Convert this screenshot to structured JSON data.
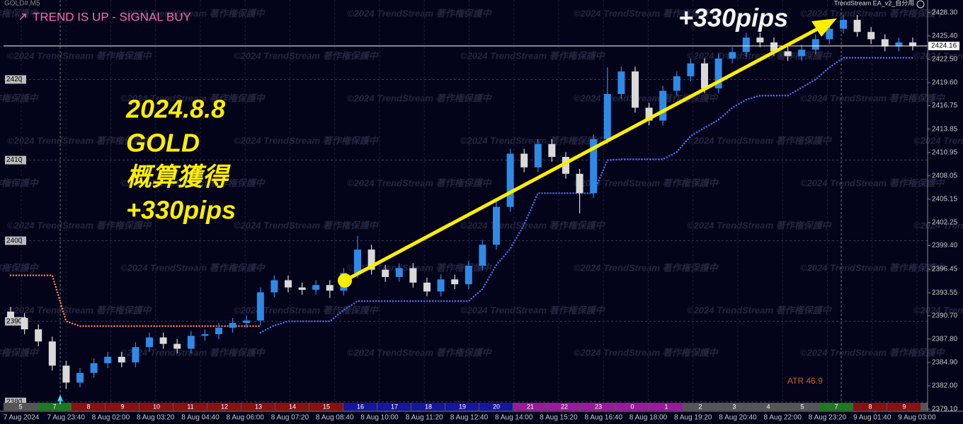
{
  "chart_data": {
    "type": "candlestick",
    "symbol": "GOLD#,M5",
    "title": "TREND IS UP - SIGNAL BUY",
    "indicator_name": "TrendStream EA_v2_自分用",
    "watermark": "©2024 TrendStream 著作権保護中",
    "annotations": [
      "2024.8.8",
      "GOLD",
      "概算獲得",
      "+330pips"
    ],
    "headline": "+330pips",
    "atr_label": "ATR 46.9",
    "bull_color": "#2f8ae6",
    "bear_color": "#d9d9d9",
    "ylim": [
      2379.1,
      2429.6
    ],
    "yticks": [
      {
        "value": 2428.3,
        "label": "2428.30"
      },
      {
        "value": 2425.4,
        "label": "2425.40"
      },
      {
        "value": 2422.5,
        "label": "2422.50"
      },
      {
        "value": 2419.6,
        "label": "2419.60"
      },
      2416.75,
      {
        "value": 2413.85,
        "label": "2413.85"
      },
      {
        "value": 2410.95,
        "label": "2410.95"
      },
      {
        "value": 2408.05,
        "label": "2408.05"
      },
      {
        "value": 2405.15,
        "label": "2405.15"
      },
      {
        "value": 2402.25,
        "label": "2402.25"
      },
      {
        "value": 2399.4,
        "label": "2399.40"
      },
      {
        "value": 2396.45,
        "label": "2396.45"
      },
      {
        "value": 2393.55,
        "label": "2393.55"
      },
      {
        "value": 2390.7,
        "label": "2390.70"
      },
      {
        "value": 2387.8,
        "label": "2387.80"
      },
      {
        "value": 2384.9,
        "label": "2384.90"
      },
      {
        "value": 2382.0,
        "label": "2382.00"
      },
      {
        "value": 2379.1,
        "label": "2379.10"
      }
    ],
    "left_ticks": [
      2420,
      2410,
      2400,
      2390,
      2380
    ],
    "last_price": 2424.16,
    "time_labels": [
      "7 Aug 2024",
      "7 Aug 23:40",
      "8 Aug 02:00",
      "8 Aug 03:20",
      "8 Aug 04:40",
      "8 Aug 06:00",
      "8 Aug 07:20",
      "8 Aug 08:40",
      "8 Aug 10:00",
      "8 Aug 11:20",
      "8 Aug 12:40",
      "8 Aug 14:00",
      "8 Aug 15:20",
      "8 Aug 16:40",
      "8 Aug 18:00",
      "8 Aug 19:20",
      "8 Aug 20:40",
      "8 Aug 22:00",
      "8 Aug 23:20",
      "9 Aug 01:40",
      "9 Aug 03:00"
    ],
    "sessions": [
      {
        "label": "5",
        "color": "#555555"
      },
      {
        "label": "7",
        "color": "#1e7a1e"
      },
      {
        "label": "8",
        "color": "#8b1010"
      },
      {
        "label": "9",
        "color": "#8b1010"
      },
      {
        "label": "10",
        "color": "#8b1010"
      },
      {
        "label": "11",
        "color": "#8b1010"
      },
      {
        "label": "12",
        "color": "#8b1010"
      },
      {
        "label": "13",
        "color": "#8b1010"
      },
      {
        "label": "14",
        "color": "#8b1010"
      },
      {
        "label": "15",
        "color": "#8b1010"
      },
      {
        "label": "16",
        "color": "#1616a0"
      },
      {
        "label": "17",
        "color": "#1616a0"
      },
      {
        "label": "18",
        "color": "#1616a0"
      },
      {
        "label": "19",
        "color": "#1616a0"
      },
      {
        "label": "20",
        "color": "#1616a0"
      },
      {
        "label": "21",
        "color": "#9a1a9a"
      },
      {
        "label": "22",
        "color": "#9a1a9a"
      },
      {
        "label": "23",
        "color": "#9a1a9a"
      },
      {
        "label": "0",
        "color": "#9a1a9a"
      },
      {
        "label": "1",
        "color": "#9a1a9a"
      },
      {
        "label": "2",
        "color": "#555555"
      },
      {
        "label": "3",
        "color": "#555555"
      },
      {
        "label": "4",
        "color": "#555555"
      },
      {
        "label": "5",
        "color": "#555555"
      },
      {
        "label": "7",
        "color": "#1e7a1e"
      },
      {
        "label": "8",
        "color": "#8b1010"
      },
      {
        "label": "9",
        "color": "#8b1010"
      }
    ],
    "open": [
      2391.2,
      2390.4,
      2389.0,
      2387.5,
      2384.5,
      2382.4,
      2383.6,
      2384.8,
      2385.6,
      2384.9,
      2386.8,
      2388.0,
      2387.2,
      2386.6,
      2388.2,
      2388.4,
      2389.2,
      2389.8,
      2390.1,
      2393.6,
      2395.1,
      2394.2,
      2393.9,
      2394.5,
      2393.8,
      2396.0,
      2398.9,
      2396.4,
      2395.5,
      2396.6,
      2394.8,
      2393.7,
      2395.2,
      2394.6,
      2396.9,
      2399.5,
      2404.2,
      2410.8,
      2409.1,
      2412.0,
      2410.4,
      2408.3,
      2405.9,
      2412.6,
      2418.2,
      2421.0,
      2416.5,
      2414.9,
      2418.6,
      2420.4,
      2422.0,
      2418.9,
      2422.6,
      2423.4,
      2425.2,
      2424.6,
      2423.5,
      2422.9,
      2423.7,
      2425.0,
      2426.3,
      2427.4,
      2425.9,
      2425.0,
      2424.1,
      2424.6
    ],
    "high": [
      2391.8,
      2391.0,
      2389.6,
      2388.1,
      2385.1,
      2384.2,
      2385.4,
      2386.2,
      2386.2,
      2387.4,
      2388.6,
      2388.6,
      2387.8,
      2388.8,
      2389.0,
      2389.8,
      2390.4,
      2390.7,
      2394.2,
      2395.7,
      2395.7,
      2394.8,
      2395.1,
      2395.1,
      2396.6,
      2400.6,
      2399.5,
      2397.0,
      2397.2,
      2397.2,
      2395.4,
      2395.8,
      2395.8,
      2397.5,
      2400.1,
      2404.8,
      2411.4,
      2411.4,
      2412.6,
      2412.6,
      2411.0,
      2408.9,
      2413.2,
      2421.5,
      2421.6,
      2421.6,
      2417.1,
      2419.2,
      2421.0,
      2422.6,
      2422.6,
      2423.2,
      2424.0,
      2425.8,
      2425.8,
      2425.2,
      2424.1,
      2424.3,
      2425.6,
      2426.9,
      2428.0,
      2428.0,
      2426.5,
      2425.6,
      2425.2,
      2425.2
    ],
    "low": [
      2389.8,
      2388.4,
      2386.9,
      2383.9,
      2381.6,
      2381.8,
      2383.0,
      2384.2,
      2384.3,
      2384.3,
      2386.2,
      2386.6,
      2386.0,
      2386.0,
      2387.6,
      2387.8,
      2388.6,
      2389.2,
      2389.5,
      2393.0,
      2393.6,
      2393.3,
      2393.3,
      2392.9,
      2393.2,
      2395.4,
      2395.8,
      2394.9,
      2394.9,
      2394.2,
      2393.1,
      2393.1,
      2394.0,
      2394.0,
      2396.3,
      2398.9,
      2403.6,
      2408.5,
      2408.5,
      2409.8,
      2407.7,
      2403.4,
      2405.3,
      2412.0,
      2417.6,
      2415.9,
      2414.3,
      2414.3,
      2418.0,
      2419.8,
      2418.3,
      2418.3,
      2422.0,
      2422.8,
      2424.0,
      2422.9,
      2422.3,
      2422.3,
      2423.1,
      2424.4,
      2425.7,
      2425.3,
      2424.4,
      2423.5,
      2423.5,
      2423.6
    ],
    "close": [
      2390.4,
      2389.0,
      2387.5,
      2384.5,
      2382.4,
      2383.6,
      2384.8,
      2385.6,
      2384.9,
      2386.8,
      2388.0,
      2387.2,
      2386.6,
      2388.2,
      2388.4,
      2389.2,
      2389.8,
      2390.1,
      2393.6,
      2395.1,
      2394.2,
      2393.9,
      2394.5,
      2393.8,
      2396.0,
      2398.9,
      2396.4,
      2395.5,
      2396.6,
      2394.8,
      2393.7,
      2395.2,
      2394.6,
      2396.9,
      2399.5,
      2404.2,
      2410.8,
      2409.1,
      2412.0,
      2410.4,
      2408.3,
      2405.9,
      2412.6,
      2418.2,
      2421.0,
      2416.5,
      2414.9,
      2418.6,
      2420.4,
      2422.0,
      2418.9,
      2422.6,
      2423.4,
      2425.2,
      2424.6,
      2423.5,
      2422.9,
      2423.7,
      2425.0,
      2426.3,
      2427.4,
      2425.9,
      2425.0,
      2424.1,
      2424.6,
      2424.2
    ],
    "series": [
      {
        "color": "#ff7f50",
        "values": [
          2395.7,
          2395.7,
          2395.7,
          2395.7,
          2390.0,
          2389.4,
          2389.4,
          2389.4,
          2389.4,
          2389.4,
          2389.4,
          2389.4,
          2389.4,
          2389.4,
          2389.4,
          2389.4,
          2389.4,
          2389.4,
          2389.4,
          null,
          null,
          null,
          null,
          null,
          null,
          null,
          null,
          null,
          null,
          null,
          null,
          null,
          null,
          null,
          null,
          null,
          null,
          null,
          null,
          null,
          null,
          null,
          null,
          null,
          null,
          null,
          null,
          null,
          null,
          null,
          null,
          null,
          null,
          null,
          null,
          null,
          null,
          null,
          null,
          null,
          null,
          null,
          null,
          null,
          null,
          null
        ]
      },
      {
        "color": "#4f6ef0",
        "values": [
          null,
          null,
          null,
          null,
          null,
          null,
          null,
          null,
          null,
          null,
          null,
          null,
          null,
          null,
          null,
          null,
          null,
          null,
          2388.6,
          2389.5,
          2390.0,
          2390.0,
          2390.0,
          2390.0,
          2391.4,
          2392.5,
          2392.5,
          2392.5,
          2392.5,
          2392.5,
          2392.5,
          2392.5,
          2392.5,
          2392.5,
          2394.0,
          2397.0,
          2399.0,
          2402.0,
          2405.9,
          2405.9,
          2405.9,
          2405.9,
          2405.9,
          2410.0,
          2410.1,
          2410.1,
          2410.1,
          2410.1,
          2411.0,
          2413.0,
          2414.0,
          2415.0,
          2416.5,
          2417.5,
          2418.0,
          2418.0,
          2418.0,
          2419.0,
          2420.0,
          2421.5,
          2422.7,
          2422.7,
          2422.7,
          2422.7,
          2422.7,
          2422.7
        ]
      }
    ]
  }
}
